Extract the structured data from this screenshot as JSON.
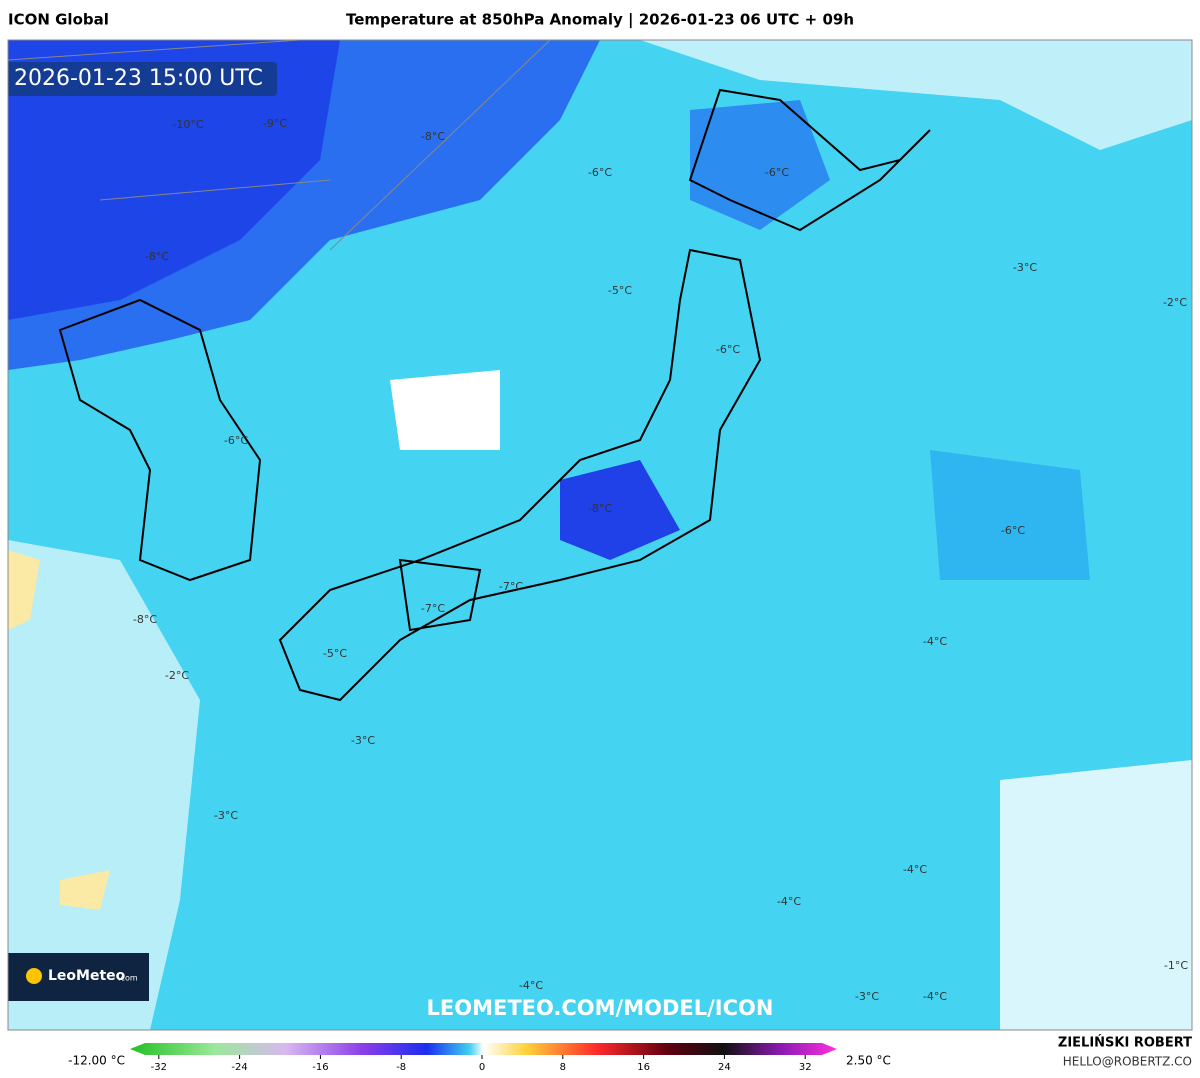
{
  "header": {
    "model": "ICON Global",
    "title": "Temperature at 850hPa Anomaly | 2026-01-23 06 UTC + 09h"
  },
  "map": {
    "valid_time": "2026-01-23 15:00 UTC",
    "contour_labels": [
      "-10°C",
      "-9°C",
      "-8°C",
      "-6°C",
      "-6°C",
      "-8°C",
      "-5°C",
      "-3°C",
      "-2°C",
      "-6°C",
      "-6°C",
      "-8°C",
      "-6°C",
      "-7°C",
      "-7°C",
      "-8°C",
      "-4°C",
      "-5°C",
      "-2°C",
      "-3°C",
      "-3°C",
      "-4°C",
      "-4°C",
      "-1°C",
      "-4°C",
      "-3°C",
      "-4°C"
    ],
    "watermark": "LEOMETEO.COM/MODEL/ICON",
    "logo": {
      "name": "LeoMeteo",
      "suffix": ".com"
    }
  },
  "legend": {
    "min_label": "-12.00 °C",
    "max_label": "2.50 °C",
    "ticks": [
      -32,
      -24,
      -16,
      -8,
      0,
      8,
      16,
      24,
      32
    ]
  },
  "footer": {
    "author": "ZIELIŃSKI ROBERT",
    "email": "HELLO@ROBERTZ.CO"
  }
}
